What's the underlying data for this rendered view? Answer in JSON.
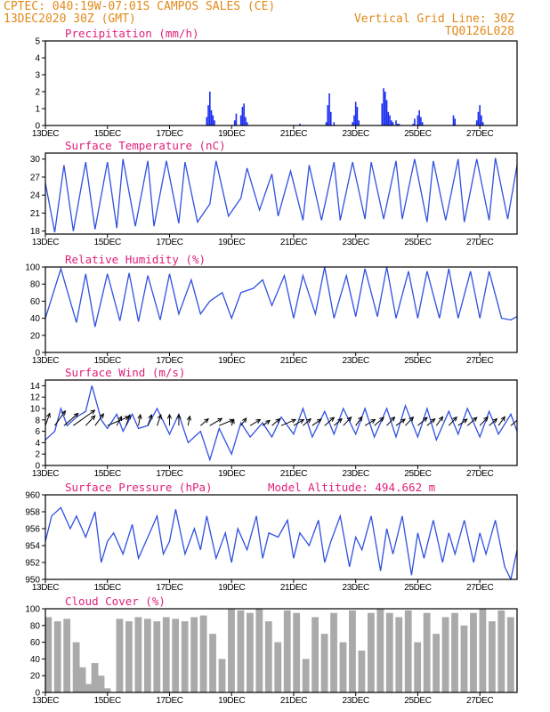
{
  "header": {
    "line1": "CPTEC:  040:19W-07:01S  CAMPOS SALES (CE)",
    "line2": "13DEC2020 30Z (GMT)",
    "grid_note": "Vertical Grid Line: 30Z",
    "code": "TQ0126L028"
  },
  "colors": {
    "header": "#e08a1a",
    "title": "#e0207a",
    "line": "#3050e0",
    "bar": "#1a2ef0",
    "cloud": "#aaaaaa",
    "wind_arrow": "#000000"
  },
  "x_ticks": [
    "13DEC",
    "15DEC",
    "17DEC",
    "19DEC",
    "21DEC",
    "23DEC",
    "25DEC",
    "27DEC"
  ],
  "x_tick_days": [
    13,
    15,
    17,
    19,
    21,
    23,
    25,
    27
  ],
  "x_range": [
    13,
    28.2
  ],
  "chart_data": [
    {
      "type": "bar",
      "id": "precip",
      "title": "Precipitation (mm/h)",
      "ylim": [
        0,
        5
      ],
      "yticks": [
        0,
        1,
        2,
        3,
        4,
        5
      ],
      "x_days": [
        18.2,
        18.25,
        18.3,
        18.35,
        18.4,
        18.45,
        19.1,
        19.15,
        19.3,
        19.35,
        19.4,
        19.45,
        19.5,
        21.2,
        22.05,
        22.1,
        22.15,
        22.2,
        22.3,
        22.9,
        22.95,
        23.0,
        23.05,
        23.1,
        23.85,
        23.9,
        23.95,
        24.0,
        24.05,
        24.1,
        24.15,
        24.2,
        24.3,
        24.35,
        24.4,
        24.85,
        24.9,
        25.0,
        25.05,
        25.1,
        25.15,
        26.15,
        26.2,
        26.9,
        26.95,
        27.0,
        27.05,
        27.1
      ],
      "values": [
        0.5,
        1.2,
        2.0,
        0.9,
        0.6,
        0.3,
        0.3,
        0.7,
        0.6,
        1.1,
        1.3,
        0.5,
        0.2,
        0.1,
        0.2,
        1.2,
        1.9,
        0.8,
        0.2,
        0.2,
        0.6,
        1.4,
        1.1,
        0.3,
        1.3,
        2.2,
        2.0,
        1.5,
        0.8,
        0.6,
        0.3,
        0.2,
        0.3,
        0.1,
        0.1,
        0.1,
        0.4,
        0.6,
        0.9,
        0.5,
        0.2,
        0.6,
        0.4,
        0.3,
        0.8,
        1.2,
        0.6,
        0.2
      ]
    },
    {
      "type": "line",
      "id": "temp",
      "title": "Surface Temperature (nC)",
      "ylim": [
        17.5,
        31
      ],
      "yticks": [
        18,
        21,
        24,
        27,
        30
      ],
      "x_days": [
        13.0,
        13.3,
        13.6,
        13.9,
        14.3,
        14.6,
        15.0,
        15.3,
        15.5,
        15.9,
        16.3,
        16.5,
        16.9,
        17.3,
        17.5,
        17.9,
        18.3,
        18.5,
        18.9,
        19.3,
        19.5,
        19.9,
        20.3,
        20.5,
        20.9,
        21.3,
        21.5,
        21.9,
        22.3,
        22.5,
        22.9,
        23.3,
        23.5,
        23.9,
        24.3,
        24.5,
        24.9,
        25.3,
        25.5,
        25.9,
        26.3,
        26.5,
        26.9,
        27.3,
        27.5,
        27.9,
        28.2
      ],
      "values": [
        26.0,
        17.8,
        29.0,
        18.0,
        29.5,
        18.3,
        29.5,
        18.5,
        30.0,
        18.8,
        29.7,
        18.8,
        29.7,
        19.3,
        29.5,
        19.5,
        22.5,
        29.7,
        20.5,
        23.5,
        28.5,
        21.5,
        27.5,
        20.5,
        28.0,
        19.8,
        29.0,
        19.8,
        29.5,
        19.8,
        29.5,
        20.0,
        29.5,
        20.0,
        29.7,
        20.0,
        30.0,
        19.5,
        29.7,
        19.8,
        30.0,
        19.5,
        30.0,
        19.8,
        30.2,
        20.0,
        29.0
      ]
    },
    {
      "type": "line",
      "id": "rh",
      "title": "Relative Humidity (%)",
      "ylim": [
        0,
        100
      ],
      "yticks": [
        0,
        20,
        40,
        60,
        80,
        100
      ],
      "x_days": [
        13.0,
        13.5,
        14.0,
        14.3,
        14.6,
        15.0,
        15.4,
        15.7,
        16.0,
        16.3,
        16.7,
        17.0,
        17.3,
        17.7,
        18.0,
        18.3,
        18.7,
        19.0,
        19.3,
        19.7,
        20.0,
        20.3,
        20.7,
        21.0,
        21.3,
        21.7,
        22.0,
        22.3,
        22.7,
        23.0,
        23.3,
        23.7,
        24.0,
        24.3,
        24.7,
        25.0,
        25.3,
        25.7,
        26.0,
        26.3,
        26.7,
        27.0,
        27.3,
        27.7,
        28.0,
        28.2
      ],
      "values": [
        40,
        98,
        35,
        92,
        30,
        92,
        37,
        93,
        36,
        90,
        38,
        92,
        45,
        85,
        45,
        60,
        70,
        40,
        70,
        75,
        85,
        55,
        90,
        40,
        90,
        45,
        100,
        40,
        90,
        42,
        98,
        42,
        100,
        40,
        95,
        40,
        95,
        40,
        98,
        40,
        95,
        40,
        95,
        40,
        38,
        42
      ]
    },
    {
      "type": "line",
      "id": "wind",
      "title": "Surface Wind (m/s)",
      "ylim": [
        0,
        15
      ],
      "yticks": [
        0,
        2,
        4,
        6,
        8,
        10,
        12,
        14
      ],
      "x_days": [
        13.0,
        13.3,
        13.5,
        13.7,
        14.0,
        14.3,
        14.5,
        14.8,
        15.0,
        15.3,
        15.5,
        15.8,
        16.0,
        16.3,
        16.6,
        17.0,
        17.3,
        17.6,
        18.0,
        18.3,
        18.6,
        19.0,
        19.3,
        19.6,
        20.0,
        20.3,
        20.6,
        21.0,
        21.3,
        21.6,
        22.0,
        22.3,
        22.6,
        23.0,
        23.3,
        23.6,
        24.0,
        24.3,
        24.6,
        25.0,
        25.3,
        25.6,
        26.0,
        26.3,
        26.6,
        27.0,
        27.3,
        27.6,
        28.0,
        28.2
      ],
      "values": [
        4.5,
        6.0,
        10.0,
        7.0,
        8.5,
        9.5,
        14.0,
        8.0,
        6.5,
        9.0,
        6.0,
        9.0,
        6.5,
        7.0,
        10.0,
        5.5,
        9.0,
        4.0,
        6.0,
        1.0,
        6.5,
        2.0,
        7.5,
        5.0,
        7.5,
        5.0,
        8.5,
        5.5,
        10.0,
        5.0,
        9.5,
        5.5,
        10.0,
        5.5,
        10.0,
        5.0,
        10.0,
        5.0,
        10.5,
        5.0,
        10.0,
        4.5,
        9.5,
        5.5,
        10.0,
        5.0,
        9.5,
        5.5,
        9.0,
        6.0
      ],
      "vector_days": [
        13.0,
        13.3,
        13.6,
        13.9,
        14.3,
        14.6,
        15.0,
        15.3,
        15.6,
        16.0,
        16.3,
        16.6,
        17.0,
        17.3,
        17.6,
        18.0,
        18.3,
        18.6,
        19.0,
        19.3,
        19.6,
        20.0,
        20.3,
        20.6,
        21.0,
        21.3,
        21.6,
        22.0,
        22.3,
        22.6,
        23.0,
        23.3,
        23.6,
        24.0,
        24.3,
        24.6,
        25.0,
        25.3,
        25.6,
        26.0,
        26.3,
        26.6,
        27.0,
        27.3,
        27.6,
        28.0
      ],
      "vector_dir_deg": [
        100,
        110,
        120,
        125,
        115,
        110,
        140,
        105,
        100,
        95,
        100,
        100,
        90,
        90,
        95,
        120,
        130,
        140,
        100,
        110,
        130,
        125,
        120,
        140,
        130,
        120,
        125,
        120,
        120,
        115,
        110,
        130,
        120,
        115,
        125,
        115,
        120,
        120,
        110,
        115,
        125,
        120,
        115,
        120,
        110,
        120
      ],
      "vector_speed": [
        8,
        10,
        9,
        12,
        7,
        8,
        9,
        6,
        7,
        7,
        7,
        7,
        7,
        7,
        6,
        5,
        6,
        6,
        4,
        5,
        5,
        4,
        5,
        6,
        5,
        5,
        5,
        6,
        5,
        6,
        6,
        5,
        6,
        6,
        5,
        6,
        6,
        5,
        6,
        6,
        5,
        6,
        6,
        5,
        6,
        7
      ]
    },
    {
      "type": "line",
      "id": "pres",
      "title": "Surface Pressure (hPa)",
      "note": "Model Altitude: 494.662 m",
      "ylim": [
        950,
        960
      ],
      "yticks": [
        950,
        952,
        954,
        956,
        958,
        960
      ],
      "x_days": [
        13.0,
        13.2,
        13.5,
        13.8,
        14.0,
        14.3,
        14.6,
        14.8,
        15.0,
        15.2,
        15.5,
        15.8,
        16.0,
        16.3,
        16.6,
        16.8,
        17.0,
        17.2,
        17.5,
        17.8,
        18.0,
        18.2,
        18.5,
        18.8,
        19.0,
        19.2,
        19.5,
        19.8,
        20.0,
        20.2,
        20.5,
        20.8,
        21.0,
        21.2,
        21.5,
        21.8,
        22.0,
        22.2,
        22.5,
        22.8,
        23.0,
        23.2,
        23.5,
        23.8,
        24.0,
        24.2,
        24.5,
        24.8,
        25.0,
        25.2,
        25.5,
        25.8,
        26.0,
        26.2,
        26.5,
        26.8,
        27.0,
        27.2,
        27.5,
        27.8,
        28.0,
        28.2
      ],
      "values": [
        954.5,
        957.5,
        958.5,
        956.0,
        957.5,
        955.0,
        958.0,
        952.0,
        954.5,
        955.5,
        953.0,
        956.5,
        952.5,
        955.0,
        957.5,
        953.0,
        954.5,
        958.3,
        953.0,
        956.0,
        953.5,
        957.5,
        952.5,
        955.5,
        952.0,
        956.0,
        953.5,
        957.5,
        952.5,
        955.5,
        955.0,
        957.0,
        952.5,
        955.5,
        954.0,
        957.0,
        952.0,
        954.5,
        957.5,
        951.5,
        955.0,
        953.5,
        957.5,
        951.0,
        956.0,
        953.0,
        957.5,
        950.5,
        955.5,
        952.5,
        957.0,
        952.0,
        955.5,
        953.0,
        957.0,
        952.0,
        955.5,
        953.0,
        957.0,
        951.5,
        950.0,
        953.5
      ]
    },
    {
      "type": "bar",
      "id": "cloud",
      "title": "Cloud Cover (%)",
      "ylim": [
        0,
        100
      ],
      "yticks": [
        0,
        20,
        40,
        60,
        80,
        100
      ],
      "x_days": [
        13.0,
        13.3,
        13.6,
        13.9,
        14.1,
        14.3,
        14.5,
        14.7,
        14.9,
        15.0,
        15.3,
        15.6,
        15.9,
        16.2,
        16.5,
        16.8,
        17.1,
        17.4,
        17.7,
        18.0,
        18.3,
        18.6,
        18.9,
        19.2,
        19.5,
        19.8,
        20.1,
        20.4,
        20.7,
        21.0,
        21.3,
        21.6,
        21.9,
        22.2,
        22.5,
        22.8,
        23.1,
        23.4,
        23.7,
        24.0,
        24.3,
        24.6,
        24.9,
        25.2,
        25.5,
        25.8,
        26.1,
        26.4,
        26.7,
        27.0,
        27.3,
        27.6,
        27.9,
        28.2
      ],
      "values": [
        90,
        85,
        88,
        60,
        30,
        10,
        35,
        20,
        5,
        0,
        88,
        85,
        90,
        88,
        85,
        90,
        88,
        85,
        90,
        92,
        70,
        40,
        100,
        98,
        95,
        100,
        85,
        60,
        98,
        95,
        40,
        90,
        70,
        95,
        60,
        98,
        50,
        95,
        100,
        95,
        90,
        98,
        60,
        95,
        70,
        90,
        95,
        80,
        95,
        100,
        85,
        98,
        90,
        95
      ]
    }
  ]
}
